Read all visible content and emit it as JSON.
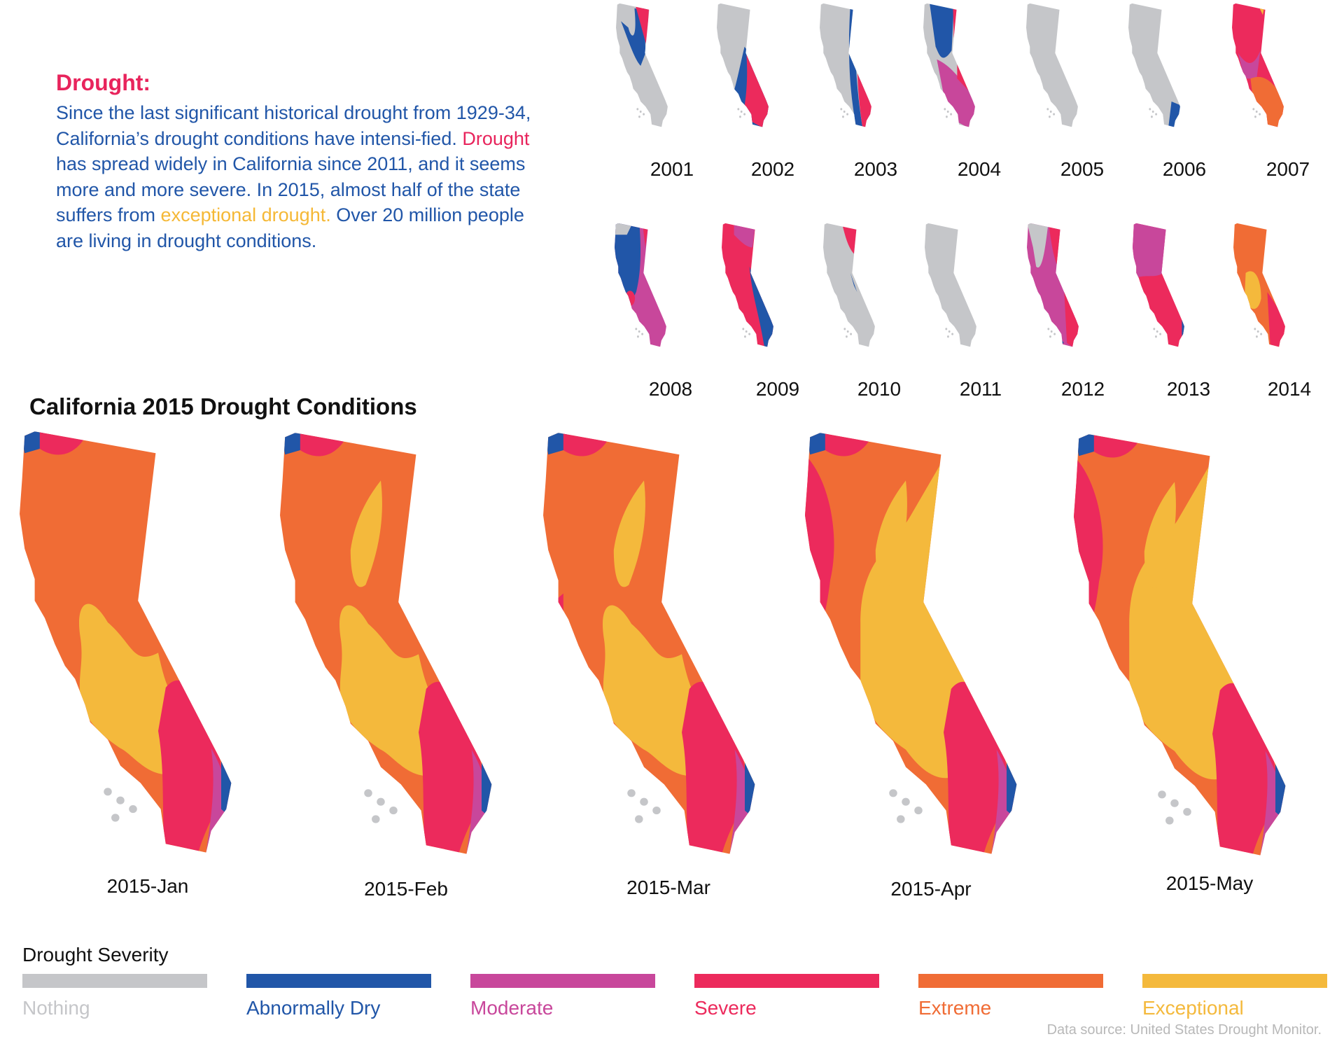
{
  "colors": {
    "nothing": "#c5c6c9",
    "abnormally_dry": "#2156a8",
    "moderate": "#c8479b",
    "severe": "#ec2a5c",
    "extreme": "#f06c35",
    "exceptional": "#f4b93c"
  },
  "intro": {
    "title": "Drought:",
    "p1": "Since the last significant historical drought from 1929-34, California’s drought conditions have intensi-fied. ",
    "hl1": "Drought",
    "p2": " has spread widely in California since 2011, and it seems more and more severe. In 2015, almost half of the state suffers from ",
    "hl2": "exceptional drought.",
    "p3": " Over 20 million people are living in drought conditions."
  },
  "history": {
    "years": [
      "2001",
      "2002",
      "2003",
      "2004",
      "2005",
      "2006",
      "2007",
      "2008",
      "2009",
      "2010",
      "2011",
      "2012",
      "2013",
      "2014"
    ],
    "dominant": [
      "nothing",
      "nothing",
      "nothing",
      "abnormally_dry",
      "nothing",
      "nothing",
      "severe",
      "abnormally_dry",
      "severe",
      "nothing",
      "nothing",
      "moderate",
      "severe",
      "extreme"
    ]
  },
  "main_title": "California 2015 Drought Conditions",
  "months": [
    "2015-Jan",
    "2015-Feb",
    "2015-Mar",
    "2015-Apr",
    "2015-May"
  ],
  "legend": {
    "title": "Drought Severity",
    "items": [
      {
        "label": "Nothing",
        "color": "#c5c6c9"
      },
      {
        "label": "Abnormally Dry",
        "color": "#2156a8"
      },
      {
        "label": "Moderate",
        "color": "#c8479b"
      },
      {
        "label": "Severe",
        "color": "#ec2a5c"
      },
      {
        "label": "Extreme",
        "color": "#f06c35"
      },
      {
        "label": "Exceptional",
        "color": "#f4b93c"
      }
    ]
  },
  "source": "Data source: United States Drought Monitor."
}
